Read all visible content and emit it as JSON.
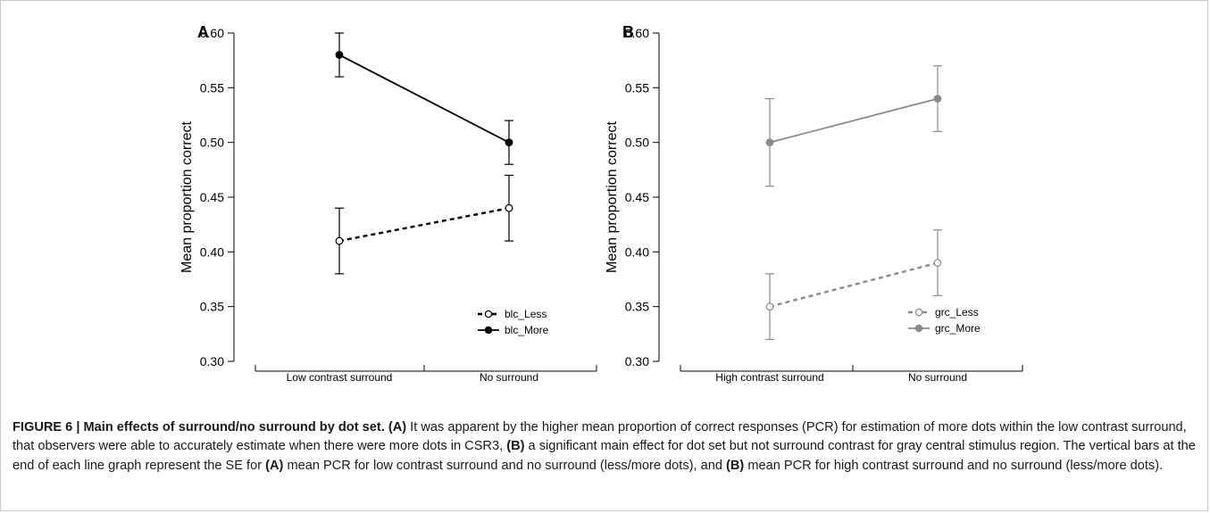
{
  "chart_data": [
    {
      "type": "line",
      "panel_label": "A",
      "ylabel": "Mean proportion correct",
      "xlabel": "",
      "ylim": [
        0.3,
        0.6
      ],
      "yticks": [
        "0.30",
        "0.35",
        "0.40",
        "0.45",
        "0.50",
        "0.55",
        "0.60"
      ],
      "categories": [
        "Low contrast surround",
        "No surround"
      ],
      "color": "#000000",
      "series": [
        {
          "name": "blc_Less",
          "values": [
            0.41,
            0.44
          ],
          "err_low": [
            0.38,
            0.41
          ],
          "err_high": [
            0.44,
            0.47
          ],
          "marker": "open",
          "line": "dashed"
        },
        {
          "name": "blc_More",
          "values": [
            0.58,
            0.5
          ],
          "err_low": [
            0.56,
            0.48
          ],
          "err_high": [
            0.6,
            0.52
          ],
          "marker": "filled",
          "line": "solid"
        }
      ],
      "legend_position": "bottom-right"
    },
    {
      "type": "line",
      "panel_label": "B",
      "ylabel": "Mean proportion correct",
      "xlabel": "",
      "ylim": [
        0.3,
        0.6
      ],
      "yticks": [
        "0.30",
        "0.35",
        "0.40",
        "0.45",
        "0.50",
        "0.55",
        "0.60"
      ],
      "categories": [
        "High contrast surround",
        "No surround"
      ],
      "color": "#8a8a8a",
      "series": [
        {
          "name": "grc_Less",
          "values": [
            0.35,
            0.39
          ],
          "err_low": [
            0.32,
            0.36
          ],
          "err_high": [
            0.38,
            0.42
          ],
          "marker": "open",
          "line": "dashed"
        },
        {
          "name": "grc_More",
          "values": [
            0.5,
            0.54
          ],
          "err_low": [
            0.46,
            0.51
          ],
          "err_high": [
            0.54,
            0.57
          ],
          "marker": "filled",
          "line": "solid"
        }
      ],
      "legend_position": "bottom-right"
    }
  ],
  "caption": {
    "label": "FIGURE 6 | Main effects of surround/no surround by dot set.",
    "parts": [
      {
        "bold": true,
        "text": " (A)"
      },
      {
        "bold": false,
        "text": " It was apparent by the higher mean proportion of correct responses (PCR) for estimation of more dots within the low contrast surround, that observers were able to accurately estimate when there were more dots in CSR3, "
      },
      {
        "bold": true,
        "text": "(B)"
      },
      {
        "bold": false,
        "text": " a significant main effect for dot set but not surround contrast for gray central stimulus region. The vertical bars at the end of each line graph represent the SE for "
      },
      {
        "bold": true,
        "text": "(A)"
      },
      {
        "bold": false,
        "text": " mean PCR for low contrast surround and no surround (less/more dots), and "
      },
      {
        "bold": true,
        "text": "(B)"
      },
      {
        "bold": false,
        "text": " mean PCR for high contrast surround and no surround (less/more dots)."
      }
    ]
  }
}
